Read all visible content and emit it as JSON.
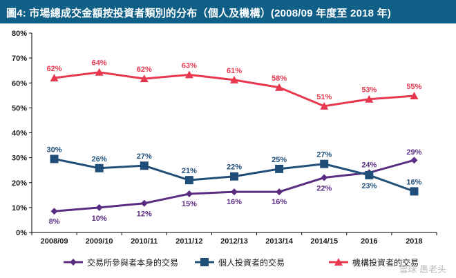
{
  "title": "圖4: 市場總成交金額按投資者類別的分布（個人及機構）(2008/09 年度至 2018 年)",
  "watermark": "雪球 愚老头",
  "chart_data": {
    "type": "line",
    "title": "圖4: 市場總成交金額按投資者類別的分布（個人及機構）(2008/09 年度至 2018 年)",
    "categories": [
      "2008/09",
      "2009/10",
      "2010/11",
      "2011/12",
      "2012/13",
      "2013/14",
      "2014/15",
      "2016",
      "2018"
    ],
    "ylim": [
      0,
      80
    ],
    "yticks": [
      "0%",
      "10%",
      "20%",
      "30%",
      "40%",
      "50%",
      "60%",
      "70%",
      "80%"
    ],
    "grid": false,
    "legend_position": "bottom",
    "series": [
      {
        "name": "交易所參與者本身的交易",
        "marker": "diamond",
        "color": "#5a2d82",
        "values": [
          8.5,
          10,
          11.7,
          15.5,
          16.3,
          16.3,
          22,
          24,
          29
        ],
        "labels": [
          "8%",
          "10%",
          "12%",
          "15%",
          "16%",
          "16%",
          "22%",
          "24%",
          "29%"
        ]
      },
      {
        "name": "個人投資者的交易",
        "marker": "square",
        "color": "#1f4e79",
        "values": [
          29.5,
          25.8,
          26.8,
          21,
          22.5,
          25.5,
          27.5,
          23,
          16.5
        ],
        "labels": [
          "30%",
          "26%",
          "27%",
          "21%",
          "22%",
          "25%",
          "27%",
          "23%",
          "16%"
        ]
      },
      {
        "name": "機構投資者的交易",
        "marker": "triangle",
        "color": "#e8384f",
        "values": [
          62,
          64.3,
          61.7,
          63.3,
          61.2,
          58.2,
          50.7,
          53.5,
          54.8
        ],
        "labels": [
          "62%",
          "64%",
          "62%",
          "63%",
          "61%",
          "58%",
          "51%",
          "53%",
          "55%"
        ]
      }
    ]
  }
}
